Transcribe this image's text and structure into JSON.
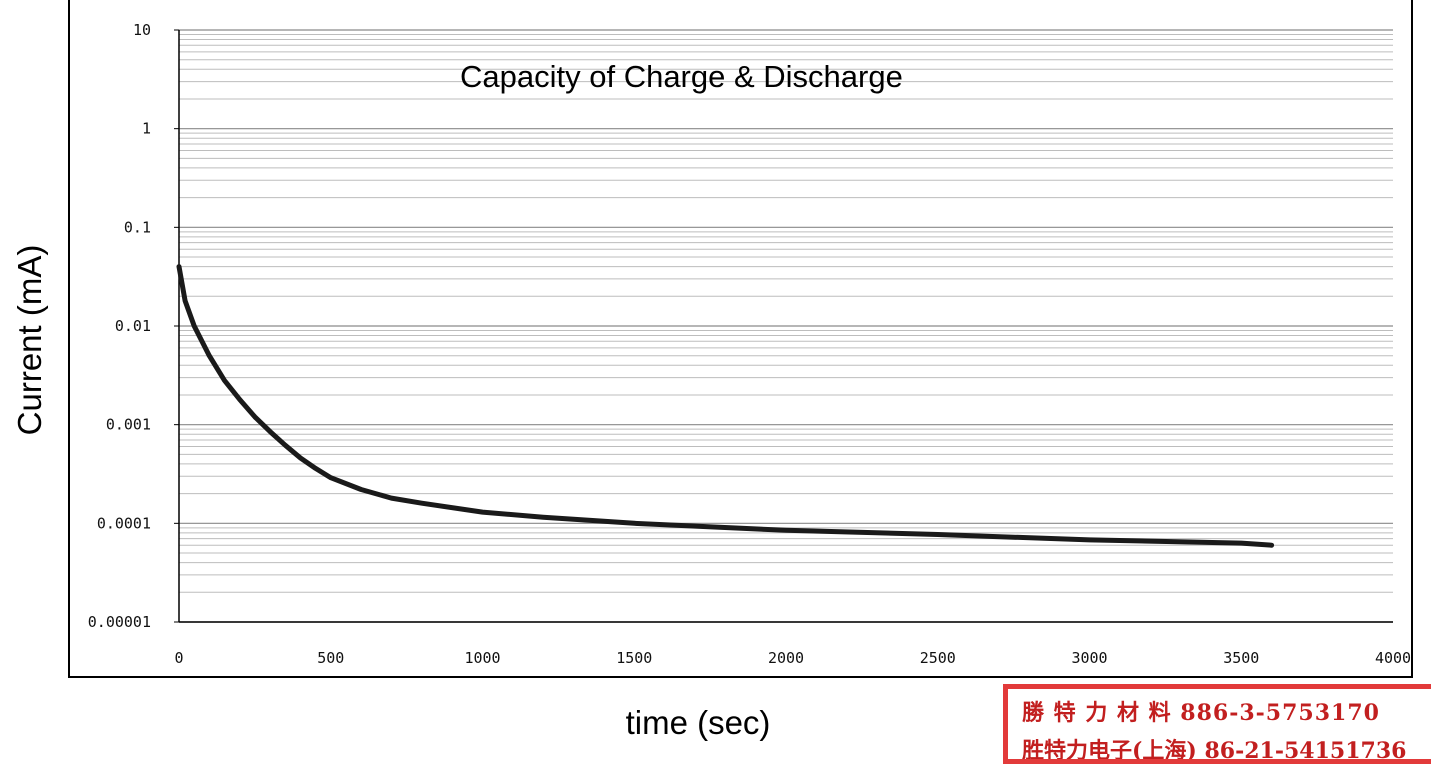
{
  "chart_data": {
    "type": "line",
    "title": "Capacity of Charge & Discharge",
    "xlabel": "time (sec)",
    "ylabel": "Current (mA)",
    "xlim": [
      0,
      4000
    ],
    "ylim": [
      1e-05,
      10
    ],
    "yscale": "log",
    "x_ticks": [
      "0",
      "500",
      "1000",
      "1500",
      "2000",
      "2500",
      "3000",
      "3500",
      "4000"
    ],
    "y_ticks": [
      "10",
      "1",
      "0.1",
      "0.01",
      "0.001",
      "0.0001",
      "0.00001"
    ],
    "grid": true,
    "series": [
      {
        "color": "#1a1a1a",
        "x": [
          0,
          20,
          50,
          100,
          150,
          200,
          250,
          300,
          350,
          400,
          450,
          500,
          600,
          700,
          800,
          1000,
          1200,
          1500,
          2000,
          2500,
          3000,
          3500,
          3600
        ],
        "y": [
          0.04,
          0.018,
          0.01,
          0.005,
          0.0028,
          0.0018,
          0.0012,
          0.00085,
          0.00062,
          0.00046,
          0.00036,
          0.00029,
          0.00022,
          0.00018,
          0.00016,
          0.00013,
          0.000115,
          0.0001,
          8.5e-05,
          7.7e-05,
          6.8e-05,
          6.3e-05,
          6e-05
        ]
      }
    ]
  },
  "stamp": {
    "line1": "勝 特 力 材 料 886-3-5753170",
    "line2": "胜特力电子(上海) 86-21-54151736"
  }
}
